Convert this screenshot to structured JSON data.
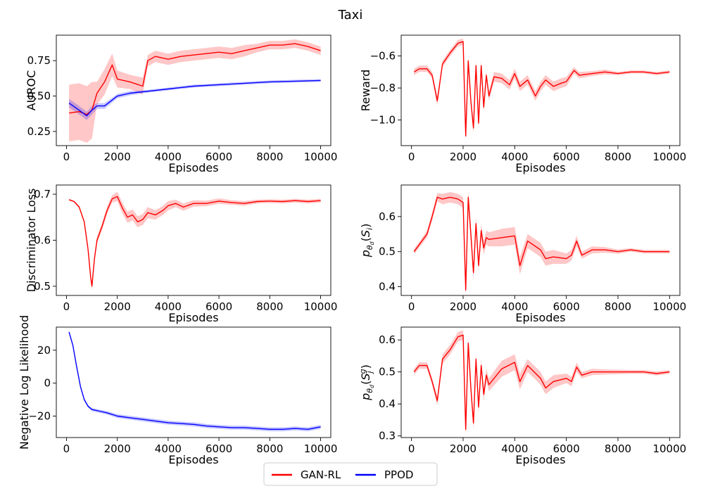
{
  "figure": {
    "title": "Taxi",
    "legend": {
      "placement": "bottom-center",
      "entries": [
        {
          "label": "GAN-RL",
          "color": "#ff0000"
        },
        {
          "label": "PPOD",
          "color": "#0000ff"
        }
      ]
    }
  },
  "chart_data": [
    {
      "type": "line",
      "xlabel": "Episodes",
      "ylabel": "AUROC",
      "xlim": [
        -400,
        10400
      ],
      "ylim": [
        0.15,
        0.93
      ],
      "xticks": [
        0,
        2000,
        4000,
        6000,
        8000,
        10000
      ],
      "yticks": [
        0.25,
        0.5,
        0.75
      ],
      "ytick_labels": [
        "0.25",
        "0.50",
        "0.75"
      ],
      "grid": false,
      "series": [
        {
          "name": "GAN-RL",
          "color": "#ff0000",
          "x": [
            100,
            500,
            800,
            1000,
            1200,
            1500,
            1800,
            2000,
            2500,
            3000,
            3200,
            3500,
            4000,
            4500,
            5000,
            5500,
            6000,
            6500,
            7000,
            7500,
            8000,
            8500,
            9000,
            9500,
            10000
          ],
          "y": [
            0.38,
            0.39,
            0.37,
            0.4,
            0.52,
            0.6,
            0.72,
            0.62,
            0.6,
            0.57,
            0.75,
            0.78,
            0.76,
            0.78,
            0.79,
            0.8,
            0.81,
            0.8,
            0.82,
            0.84,
            0.86,
            0.86,
            0.87,
            0.85,
            0.82
          ],
          "band": [
            0.2,
            0.2,
            0.2,
            0.2,
            0.08,
            0.09,
            0.08,
            0.06,
            0.05,
            0.06,
            0.04,
            0.04,
            0.04,
            0.04,
            0.04,
            0.04,
            0.04,
            0.04,
            0.04,
            0.03,
            0.03,
            0.03,
            0.03,
            0.03,
            0.03
          ]
        },
        {
          "name": "PPOD",
          "color": "#0000ff",
          "x": [
            100,
            500,
            800,
            1000,
            1200,
            1500,
            2000,
            2500,
            3000,
            4000,
            5000,
            6000,
            7000,
            8000,
            9000,
            10000
          ],
          "y": [
            0.45,
            0.4,
            0.36,
            0.4,
            0.43,
            0.43,
            0.5,
            0.52,
            0.53,
            0.55,
            0.57,
            0.58,
            0.59,
            0.6,
            0.605,
            0.61
          ],
          "band": [
            0.03,
            0.03,
            0.03,
            0.03,
            0.02,
            0.02,
            0.015,
            0.015,
            0.01,
            0.01,
            0.01,
            0.01,
            0.01,
            0.01,
            0.01,
            0.01
          ]
        }
      ]
    },
    {
      "type": "line",
      "xlabel": "Episodes",
      "ylabel": "Reward",
      "xlim": [
        -400,
        10400
      ],
      "ylim": [
        -1.16,
        -0.47
      ],
      "xticks": [
        0,
        2000,
        4000,
        6000,
        8000,
        10000
      ],
      "yticks": [
        -1.0,
        -0.8,
        -0.6
      ],
      "ytick_labels": [
        "−1.0",
        "−0.8",
        "−0.6"
      ],
      "grid": false,
      "series": [
        {
          "name": "GAN-RL",
          "color": "#ff0000",
          "x": [
            100,
            300,
            600,
            800,
            1000,
            1200,
            1500,
            1800,
            2000,
            2100,
            2200,
            2300,
            2400,
            2500,
            2600,
            2700,
            2800,
            2900,
            3000,
            3200,
            3500,
            3800,
            4000,
            4200,
            4500,
            4800,
            5000,
            5200,
            5500,
            5800,
            6000,
            6300,
            6500,
            7000,
            7500,
            8000,
            8500,
            9000,
            9500,
            10000
          ],
          "y": [
            -0.7,
            -0.68,
            -0.68,
            -0.72,
            -0.88,
            -0.65,
            -0.58,
            -0.52,
            -0.51,
            -1.1,
            -0.63,
            -0.88,
            -1.05,
            -0.66,
            -1.02,
            -0.66,
            -0.92,
            -0.72,
            -0.85,
            -0.73,
            -0.74,
            -0.78,
            -0.71,
            -0.79,
            -0.75,
            -0.85,
            -0.79,
            -0.75,
            -0.79,
            -0.77,
            -0.76,
            -0.69,
            -0.72,
            -0.71,
            -0.7,
            -0.71,
            -0.7,
            -0.7,
            -0.71,
            -0.7
          ],
          "band": [
            0.02,
            0.02,
            0.02,
            0.02,
            0.03,
            0.02,
            0.02,
            0.02,
            0.02,
            0.03,
            0.03,
            0.03,
            0.03,
            0.03,
            0.03,
            0.03,
            0.03,
            0.03,
            0.03,
            0.03,
            0.03,
            0.03,
            0.03,
            0.03,
            0.03,
            0.03,
            0.03,
            0.03,
            0.03,
            0.03,
            0.03,
            0.02,
            0.02,
            0.015,
            0.015,
            0.01,
            0.01,
            0.01,
            0.01,
            0.01
          ]
        }
      ]
    },
    {
      "type": "line",
      "xlabel": "Episodes",
      "ylabel": "Discriminator Loss",
      "xlim": [
        -400,
        10400
      ],
      "ylim": [
        0.48,
        0.72
      ],
      "xticks": [
        0,
        2000,
        4000,
        6000,
        8000,
        10000
      ],
      "yticks": [
        0.5,
        0.6,
        0.7
      ],
      "ytick_labels": [
        "0.5",
        "0.6",
        "0.7"
      ],
      "grid": false,
      "series": [
        {
          "name": "GAN-RL",
          "color": "#ff0000",
          "x": [
            100,
            300,
            500,
            700,
            850,
            950,
            1000,
            1100,
            1200,
            1400,
            1600,
            1800,
            2000,
            2200,
            2400,
            2600,
            2800,
            3000,
            3200,
            3500,
            3800,
            4000,
            4300,
            4600,
            5000,
            5500,
            6000,
            6500,
            7000,
            7500,
            8000,
            8500,
            9000,
            9500,
            10000
          ],
          "y": [
            0.688,
            0.684,
            0.672,
            0.64,
            0.58,
            0.52,
            0.5,
            0.56,
            0.6,
            0.63,
            0.665,
            0.69,
            0.695,
            0.67,
            0.65,
            0.655,
            0.64,
            0.645,
            0.66,
            0.655,
            0.665,
            0.675,
            0.68,
            0.672,
            0.68,
            0.68,
            0.685,
            0.682,
            0.68,
            0.684,
            0.685,
            0.684,
            0.686,
            0.684,
            0.686
          ],
          "band": [
            0.002,
            0.002,
            0.003,
            0.004,
            0.006,
            0.008,
            0.008,
            0.008,
            0.008,
            0.008,
            0.008,
            0.008,
            0.01,
            0.012,
            0.012,
            0.012,
            0.012,
            0.012,
            0.012,
            0.01,
            0.01,
            0.01,
            0.008,
            0.008,
            0.007,
            0.006,
            0.006,
            0.005,
            0.005,
            0.004,
            0.004,
            0.004,
            0.004,
            0.004,
            0.004
          ]
        }
      ]
    },
    {
      "type": "line",
      "xlabel": "Episodes",
      "ylabel": "pθd(Si)",
      "xlim": [
        -400,
        10400
      ],
      "ylim": [
        0.375,
        0.69
      ],
      "xticks": [
        0,
        2000,
        4000,
        6000,
        8000,
        10000
      ],
      "yticks": [
        0.4,
        0.5,
        0.6
      ],
      "ytick_labels": [
        "0.4",
        "0.5",
        "0.6"
      ],
      "grid": false,
      "series": [
        {
          "name": "GAN-RL",
          "color": "#ff0000",
          "x": [
            100,
            300,
            600,
            800,
            1000,
            1200,
            1500,
            1800,
            2000,
            2100,
            2200,
            2300,
            2400,
            2500,
            2600,
            2700,
            2800,
            2900,
            3000,
            3500,
            4000,
            4200,
            4500,
            5000,
            5200,
            5500,
            6000,
            6200,
            6400,
            6600,
            7000,
            7500,
            8000,
            8500,
            9000,
            9500,
            10000
          ],
          "y": [
            0.5,
            0.52,
            0.55,
            0.6,
            0.655,
            0.65,
            0.655,
            0.65,
            0.64,
            0.39,
            0.655,
            0.55,
            0.44,
            0.58,
            0.46,
            0.56,
            0.51,
            0.54,
            0.535,
            0.54,
            0.545,
            0.46,
            0.53,
            0.505,
            0.48,
            0.485,
            0.48,
            0.49,
            0.53,
            0.49,
            0.505,
            0.505,
            0.5,
            0.505,
            0.5,
            0.5,
            0.5
          ],
          "band": [
            0.008,
            0.008,
            0.01,
            0.012,
            0.012,
            0.015,
            0.015,
            0.015,
            0.015,
            0.02,
            0.02,
            0.02,
            0.02,
            0.02,
            0.02,
            0.02,
            0.02,
            0.02,
            0.02,
            0.025,
            0.025,
            0.025,
            0.02,
            0.02,
            0.02,
            0.02,
            0.015,
            0.015,
            0.015,
            0.01,
            0.01,
            0.008,
            0.006,
            0.005,
            0.005,
            0.005,
            0.005
          ]
        }
      ]
    },
    {
      "type": "line",
      "xlabel": "Episodes",
      "ylabel": "Negative Log Likelihood",
      "xlim": [
        -400,
        10400
      ],
      "ylim": [
        -33,
        34
      ],
      "xticks": [
        0,
        2000,
        4000,
        6000,
        8000,
        10000
      ],
      "yticks": [
        -20,
        0,
        20
      ],
      "ytick_labels": [
        "−20",
        "0",
        "20"
      ],
      "grid": false,
      "series": [
        {
          "name": "PPOD",
          "color": "#0000ff",
          "x": [
            100,
            250,
            400,
            550,
            700,
            850,
            1000,
            1300,
            1600,
            2000,
            2500,
            3000,
            3500,
            4000,
            4500,
            5000,
            5500,
            6000,
            6500,
            7000,
            7500,
            8000,
            8500,
            9000,
            9500,
            10000
          ],
          "y": [
            31,
            23,
            10,
            -2,
            -10,
            -14,
            -16,
            -17,
            -18,
            -20,
            -21,
            -22,
            -23,
            -24,
            -24.5,
            -25,
            -26,
            -26.5,
            -27,
            -27,
            -27.5,
            -28,
            -28,
            -27.5,
            -28,
            -26.5
          ],
          "band": [
            0.6,
            0.6,
            0.6,
            0.6,
            0.8,
            0.8,
            1,
            1,
            1,
            1.2,
            1.2,
            1.2,
            1.2,
            1.2,
            1.2,
            1.2,
            1.2,
            1.2,
            1.2,
            1.2,
            1.2,
            1.2,
            1.2,
            1.2,
            1.2,
            1.2
          ]
        }
      ]
    },
    {
      "type": "line",
      "xlabel": "Episodes",
      "ylabel": "pθd(Sj^g)",
      "xlim": [
        -400,
        10400
      ],
      "ylim": [
        0.295,
        0.64
      ],
      "xticks": [
        0,
        2000,
        4000,
        6000,
        8000,
        10000
      ],
      "yticks": [
        0.3,
        0.4,
        0.5,
        0.6
      ],
      "ytick_labels": [
        "0.3",
        "0.4",
        "0.5",
        "0.6"
      ],
      "grid": false,
      "series": [
        {
          "name": "GAN-RL",
          "color": "#ff0000",
          "x": [
            100,
            300,
            600,
            800,
            1000,
            1200,
            1500,
            1800,
            2000,
            2100,
            2200,
            2300,
            2400,
            2500,
            2600,
            2700,
            2800,
            2900,
            3000,
            3500,
            4000,
            4200,
            4500,
            5000,
            5200,
            5500,
            6000,
            6200,
            6400,
            6600,
            7000,
            7500,
            8000,
            8500,
            9000,
            9500,
            10000
          ],
          "y": [
            0.5,
            0.52,
            0.52,
            0.47,
            0.41,
            0.54,
            0.57,
            0.61,
            0.615,
            0.32,
            0.59,
            0.45,
            0.34,
            0.54,
            0.39,
            0.52,
            0.43,
            0.49,
            0.46,
            0.51,
            0.53,
            0.47,
            0.52,
            0.48,
            0.45,
            0.47,
            0.48,
            0.47,
            0.515,
            0.49,
            0.5,
            0.5,
            0.5,
            0.5,
            0.5,
            0.495,
            0.5
          ],
          "band": [
            0.01,
            0.01,
            0.01,
            0.01,
            0.015,
            0.015,
            0.015,
            0.015,
            0.015,
            0.02,
            0.02,
            0.02,
            0.02,
            0.02,
            0.02,
            0.02,
            0.02,
            0.02,
            0.02,
            0.025,
            0.025,
            0.025,
            0.02,
            0.02,
            0.02,
            0.02,
            0.015,
            0.015,
            0.015,
            0.01,
            0.01,
            0.008,
            0.007,
            0.006,
            0.006,
            0.006,
            0.006
          ]
        }
      ]
    }
  ]
}
